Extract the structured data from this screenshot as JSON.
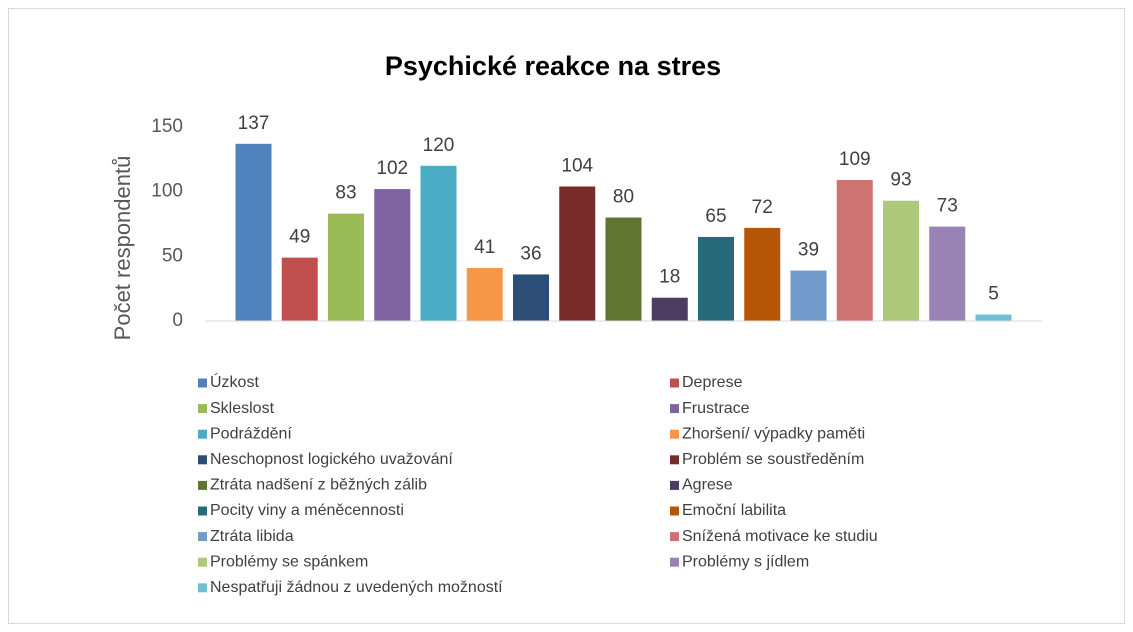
{
  "chart_data": {
    "type": "bar",
    "title": "Psychické reakce na stres",
    "y_label": "Počet respondentů",
    "categories": [
      null
    ],
    "ylim": [
      0,
      150
    ],
    "yticks": [
      0,
      50,
      100,
      150
    ],
    "grid": false,
    "legend": "bottom",
    "series": [
      {
        "name": "Úzkost",
        "color": "#4f81bd",
        "values": [
          137
        ]
      },
      {
        "name": "Deprese",
        "color": "#c0504d",
        "values": [
          49
        ]
      },
      {
        "name": "Skleslost",
        "color": "#9bbb59",
        "values": [
          83
        ]
      },
      {
        "name": "Frustrace",
        "color": "#8064a2",
        "values": [
          102
        ]
      },
      {
        "name": "Podráždění",
        "color": "#4bacc6",
        "values": [
          120
        ]
      },
      {
        "name": "Zhoršení/ výpadky paměti",
        "color": "#f79646",
        "values": [
          41
        ]
      },
      {
        "name": "Neschopnost logického uvažování",
        "color": "#2c4d75",
        "values": [
          36
        ]
      },
      {
        "name": "Problém se soustředěním",
        "color": "#772c2a",
        "values": [
          104
        ]
      },
      {
        "name": "Ztráta nadšení z běžných zálib",
        "color": "#5f7530",
        "values": [
          80
        ]
      },
      {
        "name": "Agrese",
        "color": "#4d3b62",
        "values": [
          18
        ]
      },
      {
        "name": "Pocity viny a méněcennosti",
        "color": "#276a7c",
        "values": [
          65
        ]
      },
      {
        "name": "Emoční labilita",
        "color": "#b65708",
        "values": [
          72
        ]
      },
      {
        "name": "Ztráta libida",
        "color": "#729aca",
        "values": [
          39
        ]
      },
      {
        "name": "Snížená motivace ke studiu",
        "color": "#cd7372",
        "values": [
          109
        ]
      },
      {
        "name": "Problémy se spánkem",
        "color": "#afc97a",
        "values": [
          93
        ]
      },
      {
        "name": "Problémy s jídlem",
        "color": "#9983b5",
        "values": [
          73
        ]
      },
      {
        "name": "Nespatřuji žádnou z uvedených možností",
        "color": "#6fc0d5",
        "values": [
          5
        ]
      }
    ]
  }
}
